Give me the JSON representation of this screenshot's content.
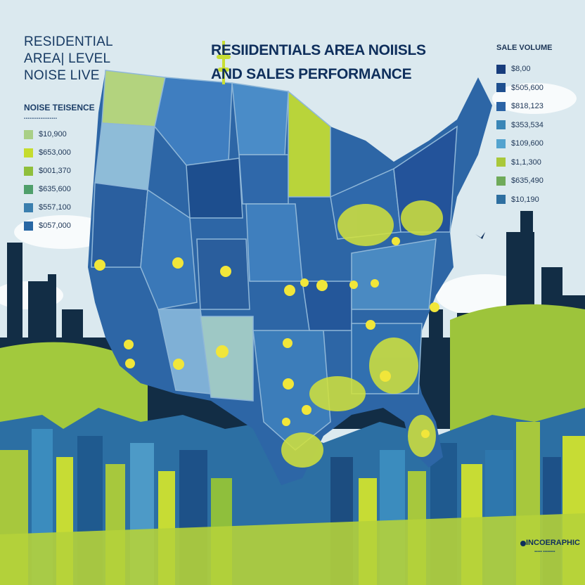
{
  "title": {
    "line1": "RESIIDENTIALS AREA NOIISLS",
    "line2": "AND SALES PERFORMANCE"
  },
  "left_heading": {
    "line1": "RESIDENTIAL",
    "line2": "AREA| LEVEL",
    "line3": "NOISE LIVE"
  },
  "noise_legend": {
    "title": "NOISE TEISENCE",
    "items": [
      {
        "label": "$10,900",
        "color": "#a9cf86"
      },
      {
        "label": "$653,000",
        "color": "#c5dc2e"
      },
      {
        "label": "$001,370",
        "color": "#8fbf3c"
      },
      {
        "label": "$635,600",
        "color": "#4f9f6b"
      },
      {
        "label": "$557,100",
        "color": "#3b7fae"
      },
      {
        "label": "$057,000",
        "color": "#2867a4"
      }
    ]
  },
  "sale_legend": {
    "title": "SALE VOLUME",
    "items": [
      {
        "label": "$8,00",
        "color": "#173c7c"
      },
      {
        "label": "$505,600",
        "color": "#1e4f8f"
      },
      {
        "label": "$818,123",
        "color": "#2b63a5"
      },
      {
        "label": "$353,534",
        "color": "#3a86b7"
      },
      {
        "label": "$109,600",
        "color": "#53a3cf"
      },
      {
        "label": "$1,1,300",
        "color": "#a9c83a"
      },
      {
        "label": "$635,490",
        "color": "#6faa5a"
      },
      {
        "label": "$10,190",
        "color": "#2e6fa0"
      }
    ]
  },
  "footer": {
    "brand": "INCOERAPHIC"
  },
  "colors": {
    "navy": "#0f2f5c",
    "map_dark": "#1f4e8c",
    "map_mid": "#3c78b4",
    "map_light": "#77a9d0",
    "lime": "#c9de34",
    "sky": "#dbe9ef"
  },
  "icons": [
    "noise-marker-icon",
    "bird-icon",
    "brand-logo-icon"
  ]
}
